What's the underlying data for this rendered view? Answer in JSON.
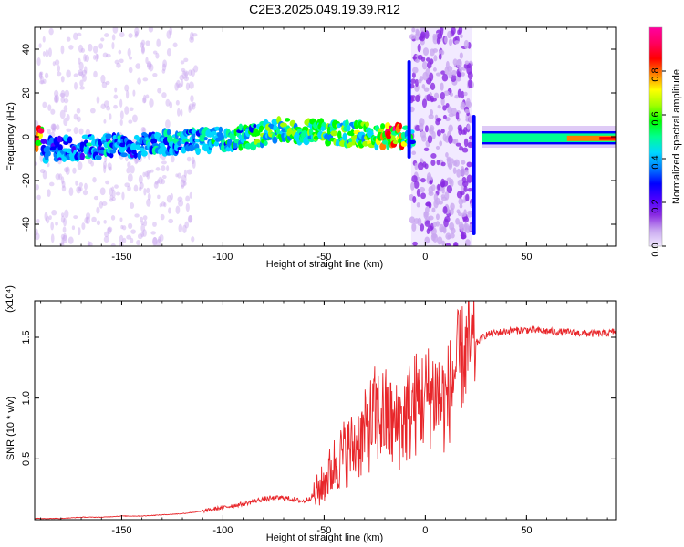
{
  "figure": {
    "title": "C2E3.2025.049.19.39.R12",
    "background": "#ffffff"
  },
  "chart_data": [
    {
      "type": "heatmap",
      "xlabel": "Height of straight line (km)",
      "ylabel": "Frequency (Hz)",
      "xlim": [
        -193,
        94
      ],
      "ylim": [
        -50,
        50
      ],
      "x_ticks": [
        -150,
        -100,
        -50,
        0,
        50
      ],
      "x_tick_labels": [
        "-150",
        "-100",
        "-50",
        "0",
        "50"
      ],
      "y_ticks": [
        -40,
        -20,
        0,
        20,
        40
      ],
      "y_tick_labels": [
        "-40",
        "-20",
        "0",
        "20",
        "40"
      ],
      "colorbar": {
        "label": "Normalized spectral amplitude",
        "range": [
          0,
          1
        ],
        "ticks": [
          "0.0",
          "0.2",
          "0.4",
          "0.6",
          "0.8"
        ],
        "colors": [
          "#f2eaff",
          "#c9a8f0",
          "#8a2be2",
          "#4b00ff",
          "#0000ff",
          "#0080ff",
          "#00d8ff",
          "#00ff90",
          "#00ff00",
          "#a0ff00",
          "#ffff00",
          "#ff8000",
          "#ff0000",
          "#ff0060",
          "#ff00a0"
        ]
      },
      "ridge": [
        {
          "x": -190,
          "freq": -6,
          "amp": 0.35
        },
        {
          "x": -170,
          "freq": -5,
          "amp": 0.4
        },
        {
          "x": -150,
          "freq": -4,
          "amp": 0.4
        },
        {
          "x": -130,
          "freq": -3,
          "amp": 0.42
        },
        {
          "x": -110,
          "freq": -2,
          "amp": 0.45
        },
        {
          "x": -90,
          "freq": 0,
          "amp": 0.5
        },
        {
          "x": -70,
          "freq": 3,
          "amp": 0.55
        },
        {
          "x": -50,
          "freq": 2,
          "amp": 0.55
        },
        {
          "x": -30,
          "freq": 1,
          "amp": 0.6
        },
        {
          "x": -15,
          "freq": 0,
          "amp": 0.85
        },
        {
          "x": -8,
          "freq": 0,
          "amp": 0.5
        },
        {
          "x": 28,
          "freq": -1,
          "amp": 0.7
        },
        {
          "x": 50,
          "freq": -1,
          "amp": 0.5
        },
        {
          "x": 70,
          "freq": -1,
          "amp": 0.6
        },
        {
          "x": 92,
          "freq": -1,
          "amp": 0.8
        }
      ]
    },
    {
      "type": "line",
      "xlabel": "Height of straight line (km)",
      "ylabel": "SNR (10 * v/v)",
      "y_multiplier": "(x10⁴)",
      "xlim": [
        -193,
        94
      ],
      "ylim": [
        0,
        1.8
      ],
      "x_ticks": [
        -150,
        -100,
        -50,
        0,
        50
      ],
      "x_tick_labels": [
        "-150",
        "-100",
        "-50",
        "0",
        "50"
      ],
      "y_ticks": [
        0.5,
        1.0,
        1.5
      ],
      "y_tick_labels": [
        "0.5",
        "1.0",
        "1.5"
      ],
      "color": "#e8262a",
      "series": [
        {
          "x": [
            -193,
            -180,
            -170,
            -160,
            -150,
            -140,
            -130,
            -120,
            -110,
            -100,
            -90,
            -80,
            -70,
            -60,
            -55,
            -50,
            -45,
            -40,
            -35,
            -30,
            -25,
            -20,
            -15,
            -10,
            -5,
            0,
            5,
            10,
            15,
            20,
            25,
            30,
            40,
            50,
            60,
            70,
            80,
            90,
            94
          ],
          "values": [
            0.01,
            0.01,
            0.02,
            0.02,
            0.03,
            0.03,
            0.04,
            0.05,
            0.07,
            0.1,
            0.13,
            0.17,
            0.18,
            0.15,
            0.2,
            0.3,
            0.45,
            0.55,
            0.6,
            0.7,
            0.85,
            0.85,
            0.75,
            0.85,
            0.95,
            1.0,
            1.05,
            0.95,
            1.25,
            1.38,
            1.45,
            1.52,
            1.55,
            1.56,
            1.55,
            1.54,
            1.53,
            1.53,
            1.55
          ]
        }
      ]
    }
  ]
}
